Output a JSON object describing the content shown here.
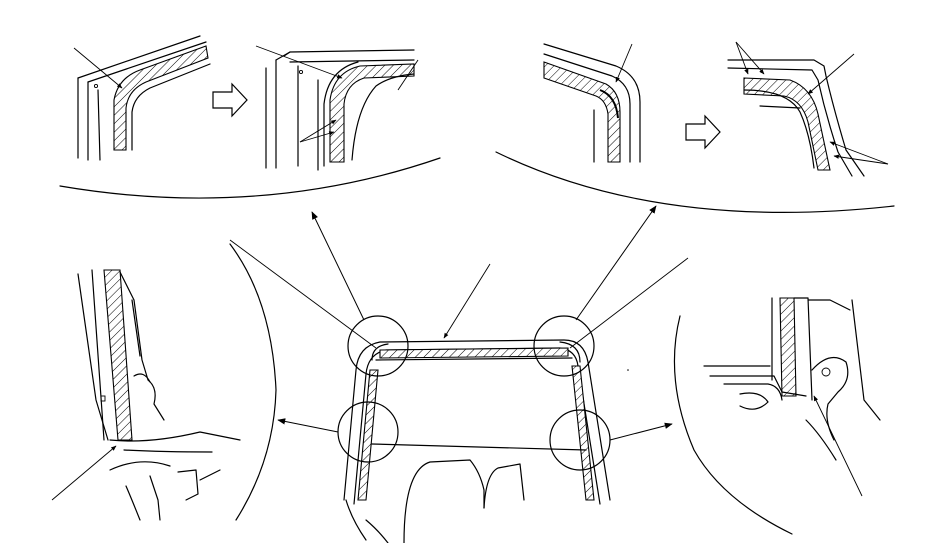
{
  "figure": {
    "colors": {
      "line": "#000000",
      "background": "#ffffff"
    },
    "panels": [
      {
        "id": "top-left-before"
      },
      {
        "id": "top-left-after"
      },
      {
        "id": "top-right-before"
      },
      {
        "id": "top-right-after"
      },
      {
        "id": "bottom-left-lower"
      },
      {
        "id": "bottom-right-lower"
      }
    ],
    "icons": [
      "step-arrow-icon",
      "step-arrow-icon"
    ]
  }
}
